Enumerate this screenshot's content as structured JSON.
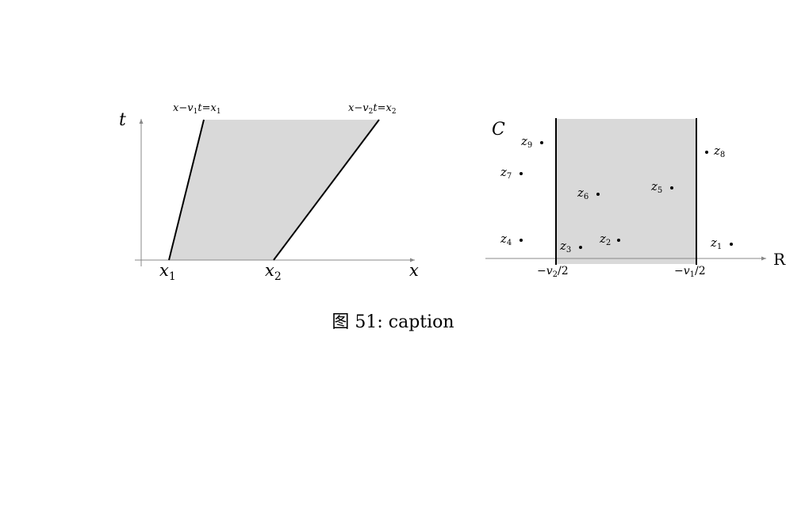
{
  "left_diagram": {
    "axis_x_label": "x",
    "axis_t_label": "t",
    "x1_label": {
      "var": "x",
      "sub": "1"
    },
    "x2_label": {
      "var": "x",
      "sub": "2"
    },
    "line1_label": {
      "a": "x",
      "op": "−",
      "v": "v",
      "vsub": "1",
      "t": "t",
      "eq": "=",
      "x": "x",
      "xsub": "1"
    },
    "line2_label": {
      "a": "x",
      "op": "−",
      "v": "v",
      "vsub": "2",
      "t": "t",
      "eq": "=",
      "x": "x",
      "xsub": "2"
    },
    "fill_color": "#d9d9d9"
  },
  "right_diagram": {
    "contour_label": "C",
    "real_axis_label": "R",
    "left_line_label": {
      "neg": "−",
      "v": "v",
      "sub": "2",
      "div": "/2"
    },
    "right_line_label": {
      "neg": "−",
      "v": "v",
      "sub": "1",
      "div": "/2"
    },
    "points": [
      {
        "var": "z",
        "sub": "1"
      },
      {
        "var": "z",
        "sub": "2"
      },
      {
        "var": "z",
        "sub": "3"
      },
      {
        "var": "z",
        "sub": "4"
      },
      {
        "var": "z",
        "sub": "5"
      },
      {
        "var": "z",
        "sub": "6"
      },
      {
        "var": "z",
        "sub": "7"
      },
      {
        "var": "z",
        "sub": "8"
      },
      {
        "var": "z",
        "sub": "9"
      }
    ],
    "fill_color": "#d9d9d9"
  },
  "caption": "图 51: caption"
}
